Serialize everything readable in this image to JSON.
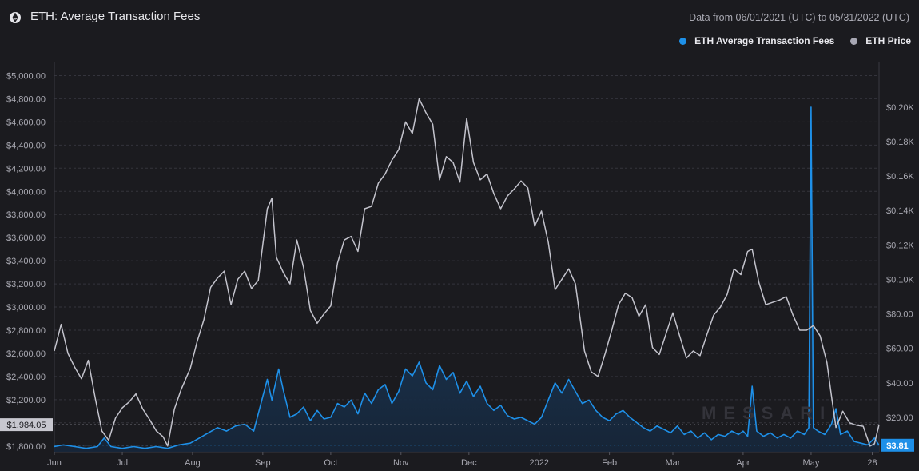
{
  "header": {
    "title": "ETH: Average Transaction Fees",
    "subtitle": "Data from 06/01/2021 (UTC) to 05/31/2022 (UTC)",
    "logo_icon": "ethereum-icon"
  },
  "legend": [
    {
      "label": "ETH Average Transaction Fees",
      "color": "#1e90e8"
    },
    {
      "label": "ETH Price",
      "color": "#a8a8b4"
    }
  ],
  "watermark": "MESSARI",
  "chart_data": {
    "type": "line",
    "x_range": [
      "2021-06-01",
      "2022-05-31"
    ],
    "left_axis": {
      "name": "ETH Price",
      "ylim": [
        1750,
        5100
      ],
      "ticks": [
        1800,
        2000,
        2200,
        2400,
        2600,
        2800,
        3000,
        3200,
        3400,
        3600,
        3800,
        4000,
        4200,
        4400,
        4600,
        4800,
        5000
      ],
      "tick_labels": [
        "$1,800.00",
        "$2,000.00",
        "$2,200.00",
        "$2,400.00",
        "$2,600.00",
        "$2,800.00",
        "$3,000.00",
        "$3,200.00",
        "$3,400.00",
        "$3,600.00",
        "$3,800.00",
        "$4,000.00",
        "$4,200.00",
        "$4,400.00",
        "$4,600.00",
        "$4,800.00",
        "$5,000.00"
      ],
      "current_label": "$1,984.05",
      "current_value": 1984.05
    },
    "right_axis": {
      "name": "ETH Average Transaction Fees",
      "ylim": [
        0,
        0.225
      ],
      "ticks": [
        0.02,
        0.04,
        0.06,
        0.08,
        0.1,
        0.12,
        0.14,
        0.16,
        0.18,
        0.2
      ],
      "tick_labels": [
        "$20.00",
        "$40.00",
        "$60.00",
        "$80.00",
        "$0.10K",
        "$0.12K",
        "$0.14K",
        "$0.16K",
        "$0.18K",
        "$0.20K"
      ],
      "current_label": "$3.81",
      "current_value": 0.00381
    },
    "x_ticks": [
      {
        "label": "Jun",
        "date": "2021-06-01"
      },
      {
        "label": "Jul",
        "date": "2021-07-01"
      },
      {
        "label": "Aug",
        "date": "2021-08-01"
      },
      {
        "label": "Sep",
        "date": "2021-09-01"
      },
      {
        "label": "Oct",
        "date": "2021-10-01"
      },
      {
        "label": "Nov",
        "date": "2021-11-01"
      },
      {
        "label": "Dec",
        "date": "2021-12-01"
      },
      {
        "label": "2022",
        "date": "2022-01-01"
      },
      {
        "label": "Feb",
        "date": "2022-02-01"
      },
      {
        "label": "Mar",
        "date": "2022-03-01"
      },
      {
        "label": "Apr",
        "date": "2022-04-01"
      },
      {
        "label": "May",
        "date": "2022-05-01"
      },
      {
        "label": "28",
        "date": "2022-05-28"
      }
    ],
    "series": [
      {
        "name": "ETH Price",
        "axis": "left",
        "color": "#c3c3cc",
        "points": [
          [
            "2021-06-01",
            2620
          ],
          [
            "2021-06-04",
            2850
          ],
          [
            "2021-06-07",
            2600
          ],
          [
            "2021-06-10",
            2480
          ],
          [
            "2021-06-13",
            2380
          ],
          [
            "2021-06-16",
            2540
          ],
          [
            "2021-06-19",
            2220
          ],
          [
            "2021-06-22",
            1930
          ],
          [
            "2021-06-25",
            1850
          ],
          [
            "2021-06-28",
            2040
          ],
          [
            "2021-07-01",
            2130
          ],
          [
            "2021-07-04",
            2180
          ],
          [
            "2021-07-07",
            2250
          ],
          [
            "2021-07-10",
            2120
          ],
          [
            "2021-07-13",
            2030
          ],
          [
            "2021-07-16",
            1930
          ],
          [
            "2021-07-19",
            1880
          ],
          [
            "2021-07-21",
            1800
          ],
          [
            "2021-07-24",
            2120
          ],
          [
            "2021-07-27",
            2290
          ],
          [
            "2021-07-31",
            2470
          ],
          [
            "2021-08-03",
            2700
          ],
          [
            "2021-08-06",
            2890
          ],
          [
            "2021-08-09",
            3170
          ],
          [
            "2021-08-12",
            3250
          ],
          [
            "2021-08-15",
            3310
          ],
          [
            "2021-08-18",
            3020
          ],
          [
            "2021-08-21",
            3240
          ],
          [
            "2021-08-24",
            3310
          ],
          [
            "2021-08-27",
            3160
          ],
          [
            "2021-08-30",
            3230
          ],
          [
            "2021-09-03",
            3850
          ],
          [
            "2021-09-05",
            3940
          ],
          [
            "2021-09-07",
            3430
          ],
          [
            "2021-09-10",
            3300
          ],
          [
            "2021-09-13",
            3200
          ],
          [
            "2021-09-16",
            3580
          ],
          [
            "2021-09-19",
            3340
          ],
          [
            "2021-09-22",
            2970
          ],
          [
            "2021-09-25",
            2860
          ],
          [
            "2021-09-28",
            2940
          ],
          [
            "2021-10-01",
            3010
          ],
          [
            "2021-10-04",
            3380
          ],
          [
            "2021-10-07",
            3580
          ],
          [
            "2021-10-10",
            3610
          ],
          [
            "2021-10-13",
            3480
          ],
          [
            "2021-10-16",
            3850
          ],
          [
            "2021-10-19",
            3870
          ],
          [
            "2021-10-22",
            4070
          ],
          [
            "2021-10-25",
            4150
          ],
          [
            "2021-10-28",
            4270
          ],
          [
            "2021-10-31",
            4360
          ],
          [
            "2021-11-03",
            4600
          ],
          [
            "2021-11-06",
            4500
          ],
          [
            "2021-11-09",
            4800
          ],
          [
            "2021-11-12",
            4680
          ],
          [
            "2021-11-15",
            4580
          ],
          [
            "2021-11-18",
            4100
          ],
          [
            "2021-11-21",
            4300
          ],
          [
            "2021-11-24",
            4250
          ],
          [
            "2021-11-27",
            4080
          ],
          [
            "2021-11-30",
            4630
          ],
          [
            "2021-12-03",
            4250
          ],
          [
            "2021-12-06",
            4100
          ],
          [
            "2021-12-09",
            4150
          ],
          [
            "2021-12-12",
            3980
          ],
          [
            "2021-12-15",
            3850
          ],
          [
            "2021-12-18",
            3960
          ],
          [
            "2021-12-21",
            4020
          ],
          [
            "2021-12-24",
            4090
          ],
          [
            "2021-12-27",
            4030
          ],
          [
            "2021-12-30",
            3700
          ],
          [
            "2022-01-02",
            3830
          ],
          [
            "2022-01-05",
            3560
          ],
          [
            "2022-01-08",
            3150
          ],
          [
            "2022-01-11",
            3240
          ],
          [
            "2022-01-14",
            3330
          ],
          [
            "2022-01-17",
            3200
          ],
          [
            "2022-01-21",
            2620
          ],
          [
            "2022-01-24",
            2440
          ],
          [
            "2022-01-27",
            2400
          ],
          [
            "2022-01-30",
            2590
          ],
          [
            "2022-02-02",
            2800
          ],
          [
            "2022-02-05",
            3020
          ],
          [
            "2022-02-08",
            3120
          ],
          [
            "2022-02-11",
            3080
          ],
          [
            "2022-02-14",
            2920
          ],
          [
            "2022-02-17",
            3020
          ],
          [
            "2022-02-20",
            2650
          ],
          [
            "2022-02-23",
            2590
          ],
          [
            "2022-02-26",
            2770
          ],
          [
            "2022-03-01",
            2950
          ],
          [
            "2022-03-04",
            2750
          ],
          [
            "2022-03-07",
            2560
          ],
          [
            "2022-03-10",
            2620
          ],
          [
            "2022-03-13",
            2580
          ],
          [
            "2022-03-16",
            2760
          ],
          [
            "2022-03-19",
            2930
          ],
          [
            "2022-03-22",
            3000
          ],
          [
            "2022-03-25",
            3110
          ],
          [
            "2022-03-28",
            3330
          ],
          [
            "2022-03-31",
            3280
          ],
          [
            "2022-04-03",
            3480
          ],
          [
            "2022-04-05",
            3500
          ],
          [
            "2022-04-08",
            3210
          ],
          [
            "2022-04-11",
            3020
          ],
          [
            "2022-04-14",
            3040
          ],
          [
            "2022-04-17",
            3060
          ],
          [
            "2022-04-20",
            3090
          ],
          [
            "2022-04-23",
            2930
          ],
          [
            "2022-04-26",
            2800
          ],
          [
            "2022-04-29",
            2800
          ],
          [
            "2022-05-02",
            2840
          ],
          [
            "2022-05-05",
            2750
          ],
          [
            "2022-05-08",
            2520
          ],
          [
            "2022-05-10",
            2230
          ],
          [
            "2022-05-12",
            1960
          ],
          [
            "2022-05-15",
            2100
          ],
          [
            "2022-05-18",
            2000
          ],
          [
            "2022-05-21",
            1980
          ],
          [
            "2022-05-24",
            1970
          ],
          [
            "2022-05-27",
            1800
          ],
          [
            "2022-05-29",
            1820
          ],
          [
            "2022-05-31",
            1984
          ]
        ]
      },
      {
        "name": "ETH Average Transaction Fees",
        "axis": "right",
        "color": "#1e90e8",
        "fill": "#1d3550",
        "points": [
          [
            "2021-06-01",
            0.003
          ],
          [
            "2021-06-05",
            0.004
          ],
          [
            "2021-06-10",
            0.003
          ],
          [
            "2021-06-15",
            0.002
          ],
          [
            "2021-06-20",
            0.003
          ],
          [
            "2021-06-23",
            0.008
          ],
          [
            "2021-06-26",
            0.003
          ],
          [
            "2021-07-01",
            0.002
          ],
          [
            "2021-07-06",
            0.003
          ],
          [
            "2021-07-11",
            0.002
          ],
          [
            "2021-07-16",
            0.003
          ],
          [
            "2021-07-21",
            0.002
          ],
          [
            "2021-07-26",
            0.004
          ],
          [
            "2021-07-31",
            0.005
          ],
          [
            "2021-08-04",
            0.008
          ],
          [
            "2021-08-08",
            0.011
          ],
          [
            "2021-08-12",
            0.014
          ],
          [
            "2021-08-16",
            0.012
          ],
          [
            "2021-08-20",
            0.015
          ],
          [
            "2021-08-24",
            0.016
          ],
          [
            "2021-08-28",
            0.012
          ],
          [
            "2021-09-01",
            0.032
          ],
          [
            "2021-09-03",
            0.042
          ],
          [
            "2021-09-05",
            0.03
          ],
          [
            "2021-09-08",
            0.048
          ],
          [
            "2021-09-10",
            0.036
          ],
          [
            "2021-09-13",
            0.02
          ],
          [
            "2021-09-16",
            0.022
          ],
          [
            "2021-09-19",
            0.026
          ],
          [
            "2021-09-22",
            0.018
          ],
          [
            "2021-09-25",
            0.024
          ],
          [
            "2021-09-28",
            0.019
          ],
          [
            "2021-10-01",
            0.02
          ],
          [
            "2021-10-04",
            0.028
          ],
          [
            "2021-10-07",
            0.026
          ],
          [
            "2021-10-10",
            0.03
          ],
          [
            "2021-10-13",
            0.022
          ],
          [
            "2021-10-16",
            0.034
          ],
          [
            "2021-10-19",
            0.028
          ],
          [
            "2021-10-22",
            0.036
          ],
          [
            "2021-10-25",
            0.039
          ],
          [
            "2021-10-28",
            0.028
          ],
          [
            "2021-10-31",
            0.035
          ],
          [
            "2021-11-03",
            0.048
          ],
          [
            "2021-11-06",
            0.044
          ],
          [
            "2021-11-09",
            0.052
          ],
          [
            "2021-11-12",
            0.04
          ],
          [
            "2021-11-15",
            0.036
          ],
          [
            "2021-11-18",
            0.05
          ],
          [
            "2021-11-21",
            0.042
          ],
          [
            "2021-11-24",
            0.046
          ],
          [
            "2021-11-27",
            0.034
          ],
          [
            "2021-11-30",
            0.041
          ],
          [
            "2021-12-03",
            0.032
          ],
          [
            "2021-12-06",
            0.038
          ],
          [
            "2021-12-09",
            0.028
          ],
          [
            "2021-12-12",
            0.024
          ],
          [
            "2021-12-15",
            0.027
          ],
          [
            "2021-12-18",
            0.021
          ],
          [
            "2021-12-21",
            0.019
          ],
          [
            "2021-12-24",
            0.02
          ],
          [
            "2021-12-27",
            0.018
          ],
          [
            "2021-12-30",
            0.016
          ],
          [
            "2022-01-02",
            0.02
          ],
          [
            "2022-01-05",
            0.03
          ],
          [
            "2022-01-08",
            0.04
          ],
          [
            "2022-01-11",
            0.034
          ],
          [
            "2022-01-14",
            0.042
          ],
          [
            "2022-01-17",
            0.035
          ],
          [
            "2022-01-20",
            0.028
          ],
          [
            "2022-01-23",
            0.03
          ],
          [
            "2022-01-26",
            0.024
          ],
          [
            "2022-01-29",
            0.02
          ],
          [
            "2022-02-01",
            0.018
          ],
          [
            "2022-02-04",
            0.022
          ],
          [
            "2022-02-07",
            0.024
          ],
          [
            "2022-02-10",
            0.02
          ],
          [
            "2022-02-13",
            0.017
          ],
          [
            "2022-02-16",
            0.014
          ],
          [
            "2022-02-19",
            0.012
          ],
          [
            "2022-02-22",
            0.015
          ],
          [
            "2022-02-25",
            0.013
          ],
          [
            "2022-02-28",
            0.011
          ],
          [
            "2022-03-03",
            0.015
          ],
          [
            "2022-03-06",
            0.01
          ],
          [
            "2022-03-09",
            0.012
          ],
          [
            "2022-03-12",
            0.008
          ],
          [
            "2022-03-15",
            0.011
          ],
          [
            "2022-03-18",
            0.007
          ],
          [
            "2022-03-21",
            0.01
          ],
          [
            "2022-03-24",
            0.009
          ],
          [
            "2022-03-27",
            0.012
          ],
          [
            "2022-03-30",
            0.01
          ],
          [
            "2022-04-01",
            0.012
          ],
          [
            "2022-04-03",
            0.009
          ],
          [
            "2022-04-05",
            0.038
          ],
          [
            "2022-04-07",
            0.012
          ],
          [
            "2022-04-10",
            0.009
          ],
          [
            "2022-04-13",
            0.011
          ],
          [
            "2022-04-16",
            0.008
          ],
          [
            "2022-04-19",
            0.01
          ],
          [
            "2022-04-22",
            0.008
          ],
          [
            "2022-04-25",
            0.012
          ],
          [
            "2022-04-28",
            0.01
          ],
          [
            "2022-04-30",
            0.014
          ],
          [
            "2022-05-01",
            0.2
          ],
          [
            "2022-05-02",
            0.014
          ],
          [
            "2022-05-04",
            0.012
          ],
          [
            "2022-05-07",
            0.01
          ],
          [
            "2022-05-10",
            0.016
          ],
          [
            "2022-05-12",
            0.025
          ],
          [
            "2022-05-14",
            0.01
          ],
          [
            "2022-05-17",
            0.012
          ],
          [
            "2022-05-20",
            0.006
          ],
          [
            "2022-05-23",
            0.005
          ],
          [
            "2022-05-26",
            0.004
          ],
          [
            "2022-05-29",
            0.008
          ],
          [
            "2022-05-31",
            0.00381
          ]
        ]
      }
    ]
  }
}
